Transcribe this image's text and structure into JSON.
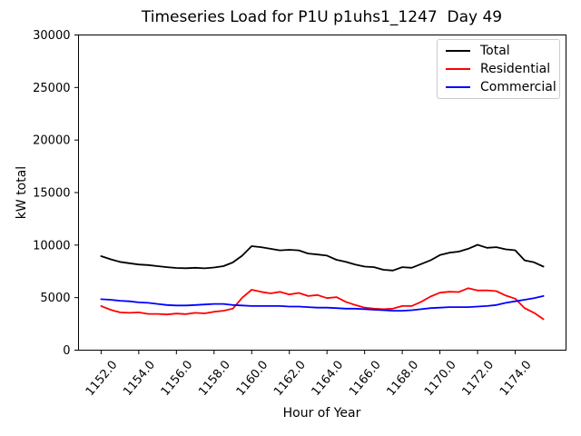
{
  "chart_data": {
    "type": "line",
    "title": "Timeseries Load for P1U p1uhs1_1247  Day 49",
    "xlabel": "Hour of Year",
    "ylabel": "kW total",
    "grid": false,
    "legend_position": "upper-right",
    "xlim": [
      1150.8,
      1176.7
    ],
    "ylim": [
      0,
      30000
    ],
    "yticks": [
      0,
      5000,
      10000,
      15000,
      20000,
      25000,
      30000
    ],
    "ytick_labels": [
      "0",
      "5000",
      "10000",
      "15000",
      "20000",
      "25000",
      "30000"
    ],
    "xticks": [
      1152,
      1154,
      1156,
      1158,
      1160,
      1162,
      1164,
      1166,
      1168,
      1170,
      1172,
      1174
    ],
    "xtick_labels": [
      "1152.0",
      "1154.0",
      "1156.0",
      "1158.0",
      "1160.0",
      "1162.0",
      "1164.0",
      "1166.0",
      "1168.0",
      "1170.0",
      "1172.0",
      "1174.0"
    ],
    "x": [
      1152.0,
      1152.5,
      1153.0,
      1153.5,
      1154.0,
      1154.5,
      1155.0,
      1155.5,
      1156.0,
      1156.5,
      1157.0,
      1157.5,
      1158.0,
      1158.5,
      1159.0,
      1159.5,
      1160.0,
      1160.5,
      1161.0,
      1161.5,
      1162.0,
      1162.5,
      1163.0,
      1163.5,
      1164.0,
      1164.5,
      1165.0,
      1165.5,
      1166.0,
      1166.5,
      1167.0,
      1167.5,
      1168.0,
      1168.5,
      1169.0,
      1169.5,
      1170.0,
      1170.5,
      1171.0,
      1171.5,
      1172.0,
      1172.5,
      1173.0,
      1173.5,
      1174.0,
      1174.5,
      1175.0,
      1175.5
    ],
    "series": [
      {
        "name": "Total",
        "color": "#000000",
        "values": [
          8950,
          8650,
          8400,
          8270,
          8150,
          8100,
          8000,
          7900,
          7820,
          7800,
          7840,
          7790,
          7870,
          8000,
          8350,
          9000,
          9900,
          9800,
          9650,
          9500,
          9550,
          9500,
          9200,
          9100,
          9000,
          8600,
          8400,
          8150,
          7950,
          7900,
          7650,
          7580,
          7900,
          7840,
          8200,
          8550,
          9050,
          9280,
          9380,
          9650,
          10030,
          9740,
          9800,
          9600,
          9510,
          8550,
          8360,
          7950
        ]
      },
      {
        "name": "Residential",
        "color": "#ff0000",
        "values": [
          4200,
          3850,
          3600,
          3550,
          3600,
          3450,
          3450,
          3400,
          3480,
          3430,
          3550,
          3500,
          3660,
          3750,
          3950,
          5000,
          5750,
          5550,
          5400,
          5550,
          5300,
          5450,
          5150,
          5250,
          4950,
          5050,
          4600,
          4300,
          4050,
          3950,
          3900,
          3950,
          4200,
          4200,
          4600,
          5100,
          5470,
          5560,
          5530,
          5900,
          5680,
          5700,
          5620,
          5200,
          4900,
          4000,
          3550,
          2950
        ]
      },
      {
        "name": "Commercial",
        "color": "#0000ff",
        "values": [
          4850,
          4800,
          4700,
          4650,
          4550,
          4500,
          4400,
          4300,
          4250,
          4250,
          4300,
          4350,
          4400,
          4400,
          4300,
          4250,
          4200,
          4200,
          4200,
          4200,
          4150,
          4150,
          4100,
          4050,
          4050,
          4000,
          3950,
          3950,
          3900,
          3850,
          3800,
          3750,
          3750,
          3800,
          3900,
          4000,
          4050,
          4100,
          4100,
          4100,
          4150,
          4200,
          4300,
          4500,
          4650,
          4800,
          4950,
          5150
        ]
      }
    ]
  },
  "legend": {
    "items": [
      {
        "label": "Total",
        "color": "#000000"
      },
      {
        "label": "Residential",
        "color": "#ff0000"
      },
      {
        "label": "Commercial",
        "color": "#0000ff"
      }
    ]
  }
}
